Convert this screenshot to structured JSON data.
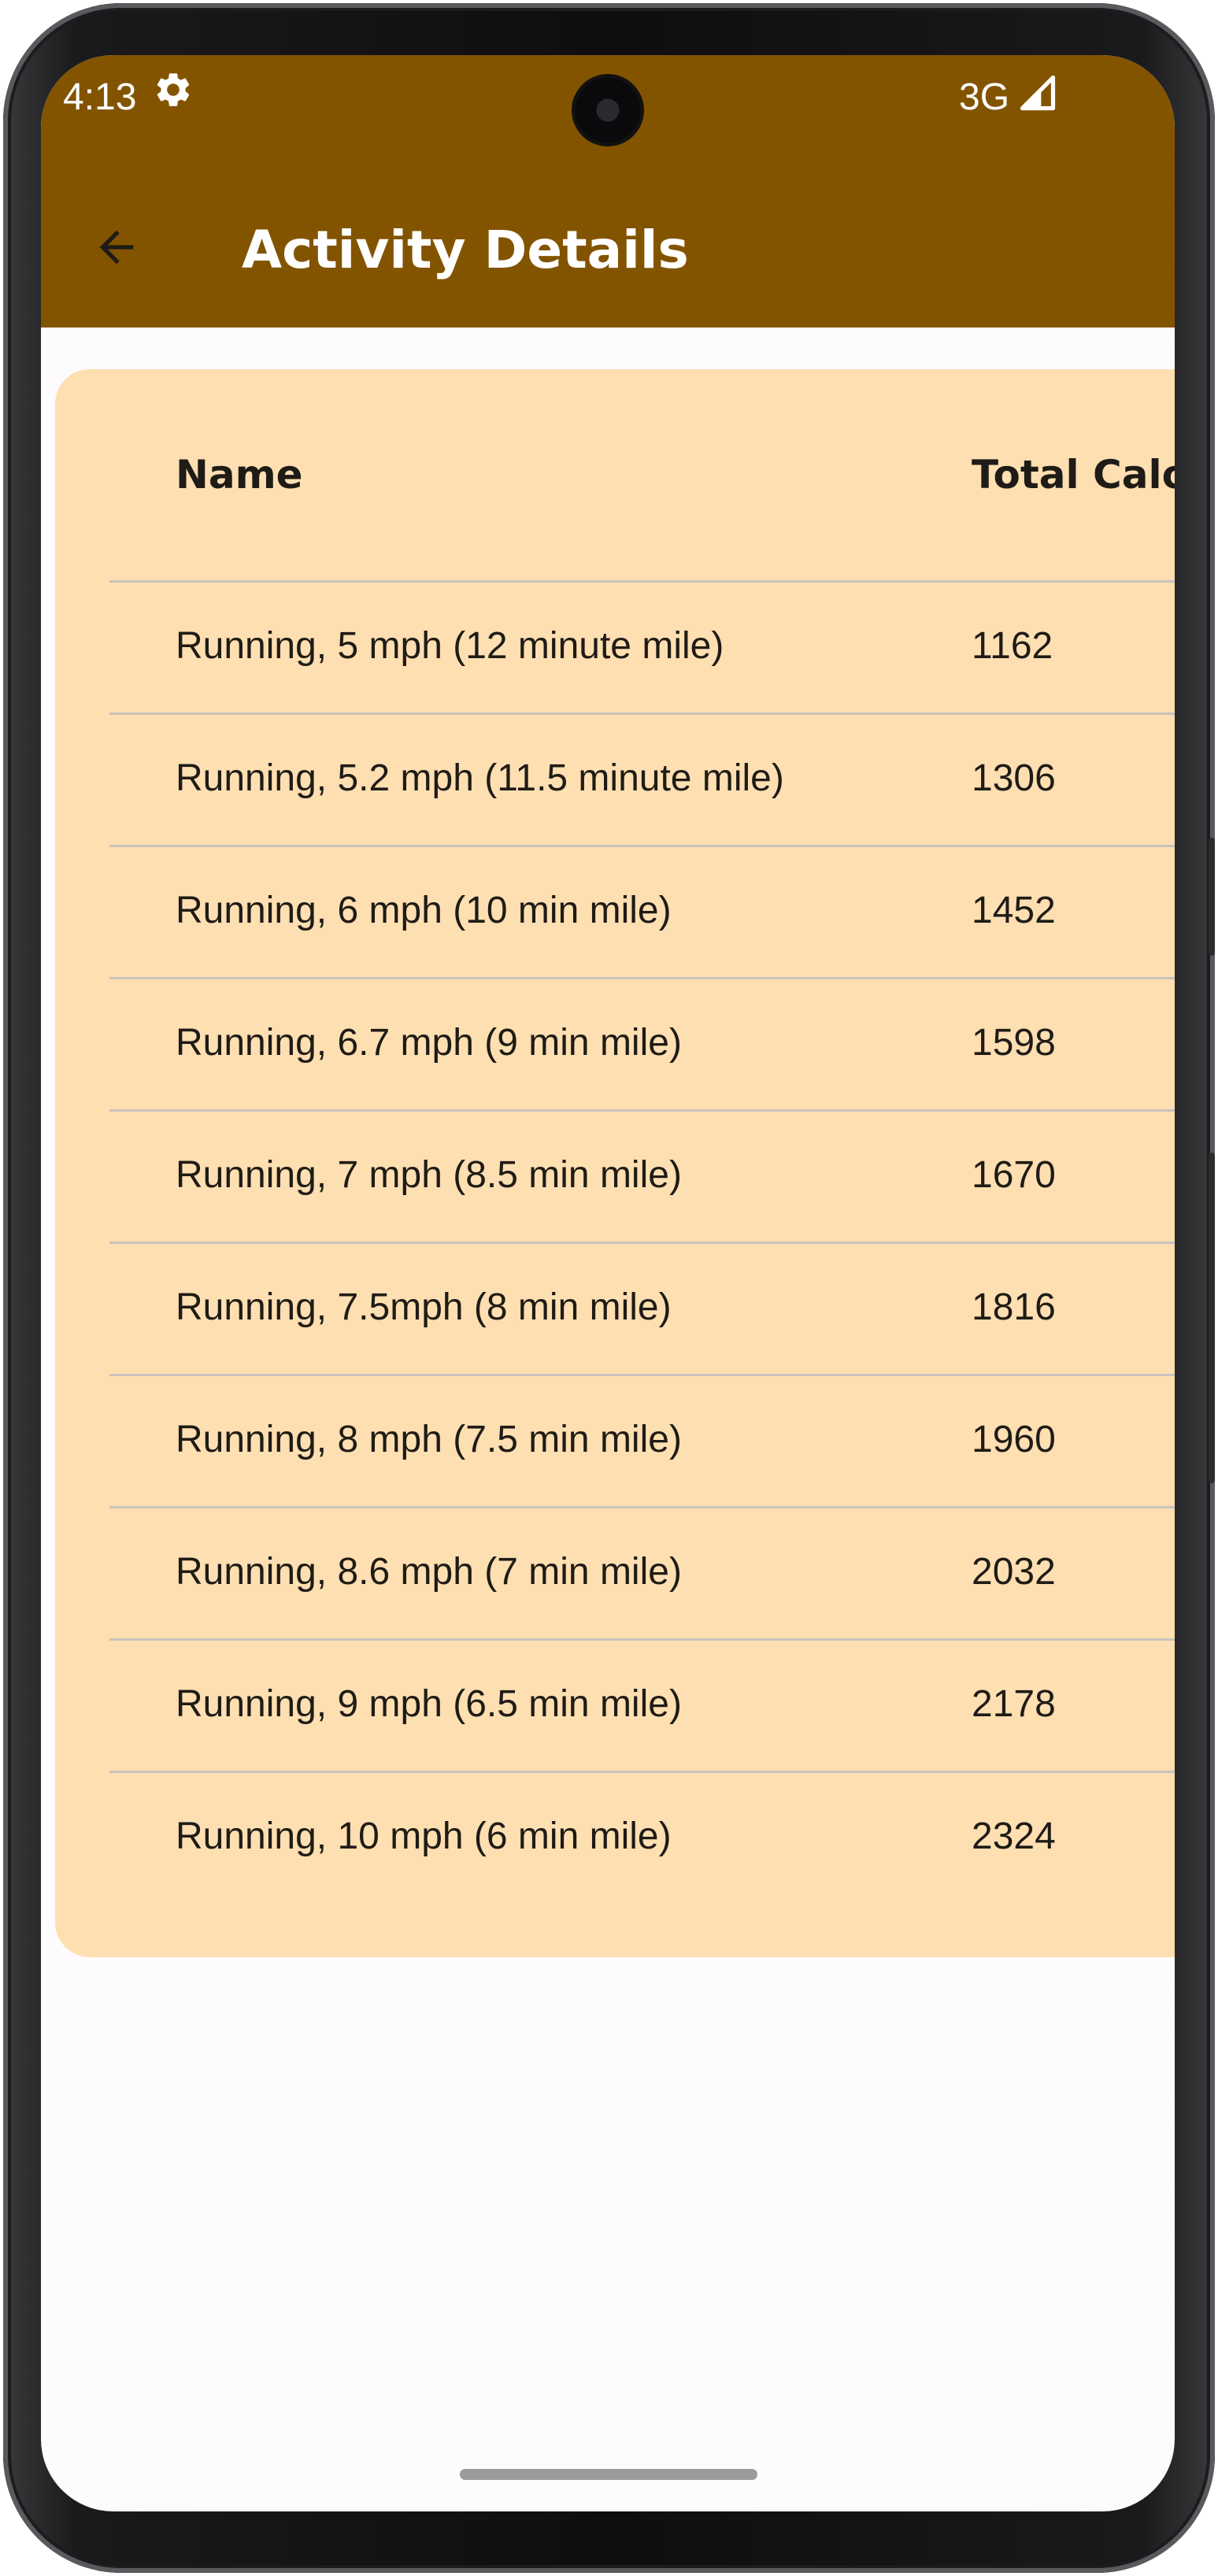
{
  "status_bar": {
    "time": "4:13",
    "network": "3G",
    "settings_icon": "gear-icon",
    "signal_icon": "cell-signal-icon"
  },
  "app_bar": {
    "title": "Activity Details",
    "back_icon": "arrow-left-icon",
    "background_color": "#835400"
  },
  "table": {
    "background_color": "#fedfb1",
    "columns": [
      "Name",
      "Total Calo"
    ],
    "rows": [
      {
        "name": "Running, 5 mph (12 minute mile)",
        "calories": "1162"
      },
      {
        "name": "Running, 5.2 mph (11.5 minute mile)",
        "calories": "1306"
      },
      {
        "name": "Running, 6 mph (10 min mile)",
        "calories": "1452"
      },
      {
        "name": "Running, 6.7 mph (9 min mile)",
        "calories": "1598"
      },
      {
        "name": "Running, 7 mph (8.5 min mile)",
        "calories": "1670"
      },
      {
        "name": "Running, 7.5mph (8 min mile)",
        "calories": "1816"
      },
      {
        "name": "Running, 8 mph (7.5 min mile)",
        "calories": "1960"
      },
      {
        "name": "Running, 8.6 mph (7 min mile)",
        "calories": "2032"
      },
      {
        "name": "Running, 9 mph (6.5 min mile)",
        "calories": "2178"
      },
      {
        "name": "Running, 10 mph (6 min mile)",
        "calories": "2324"
      }
    ]
  }
}
